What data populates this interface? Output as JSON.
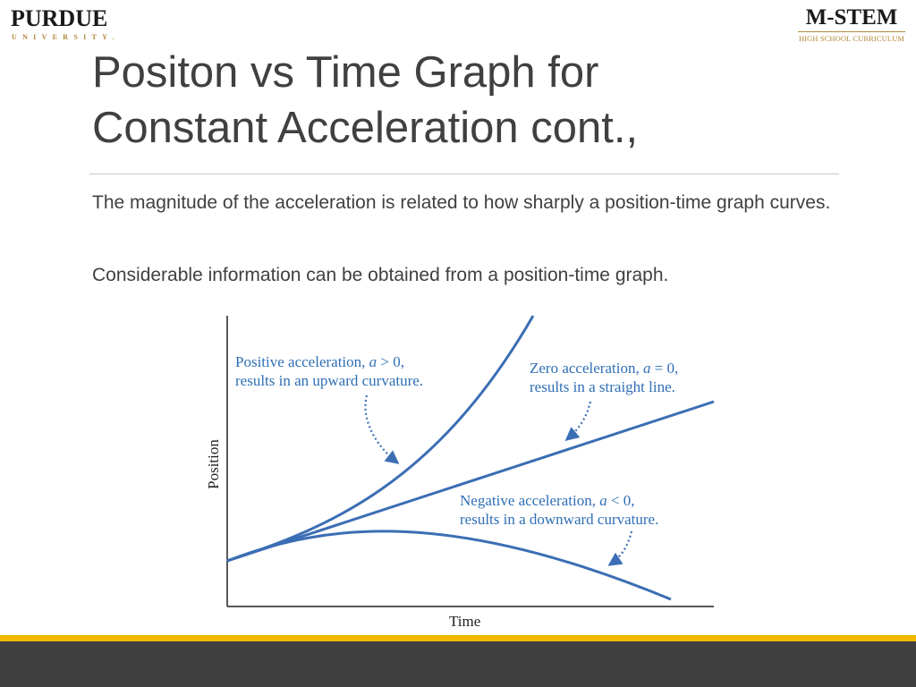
{
  "logos": {
    "purdue_name": "PURDUE",
    "purdue_sub": "UNIVERSITY.",
    "mstem_name": "M-STEM",
    "mstem_sub": "HIGH SCHOOL CURRICULUM"
  },
  "slide": {
    "title_line1": "Positon vs Time Graph for",
    "title_line2": "Constant Acceleration cont.,",
    "paragraph1": "The magnitude of the acceleration is related to how sharply a position-time graph curves.",
    "paragraph2": "Considerable information can be obtained from a position-time graph."
  },
  "figure": {
    "xlabel": "Time",
    "ylabel": "Position",
    "labels": {
      "positive_line1_pre": "Positive acceleration, ",
      "positive_var": "a",
      "positive_line1_post": " > 0,",
      "positive_line2": "results in an upward curvature.",
      "zero_line1_pre": "Zero acceleration, ",
      "zero_var": "a",
      "zero_line1_post": " = 0,",
      "zero_line2": "results in a straight line.",
      "negative_line1_pre": "Negative acceleration, ",
      "negative_var": "a",
      "negative_line1_post": " < 0,",
      "negative_line2": "results in a downward curvature."
    }
  },
  "colors": {
    "curve": "#3b6eb4",
    "accent_gold": "#f0b800",
    "footer_dark": "#404040"
  }
}
